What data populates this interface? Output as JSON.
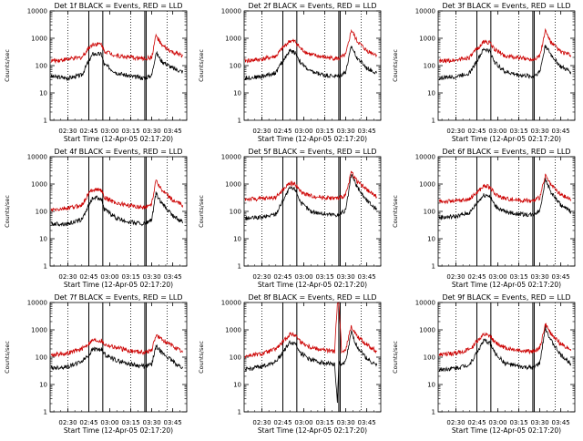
{
  "chart_data": [
    {
      "type": "line",
      "title": "Det 1f BLACK = Events, RED = LLD",
      "xlabel": "Start Time (12-Apr-05 02:17:20)",
      "ylabel": "Counts/sec",
      "ylim": [
        1,
        10000
      ],
      "yscale": "log",
      "xticks": [
        "02:30",
        "02:45",
        "03:00",
        "03:15",
        "03:30",
        "03:45"
      ],
      "yticks": [
        "1",
        "10",
        "100",
        "1000",
        "10000"
      ],
      "x_range": [
        "02:17:20",
        "03:55:00"
      ],
      "dotted_vlines": [
        "02:30",
        "03:15",
        "03:41"
      ],
      "solid_vlines": [
        "02:45",
        "02:55",
        "03:25",
        "03:26"
      ],
      "series": [
        {
          "color": "#000000",
          "x": [
            "02:18",
            "02:30",
            "02:40",
            "02:45",
            "02:48",
            "02:54",
            "02:56",
            "03:05",
            "03:15",
            "03:25",
            "03:30",
            "03:33",
            "03:37",
            "03:45",
            "03:52"
          ],
          "values": [
            40,
            35,
            45,
            150,
            270,
            260,
            110,
            55,
            40,
            35,
            45,
            300,
            150,
            80,
            60
          ]
        },
        {
          "color": "#cc0000",
          "x": [
            "02:18",
            "02:30",
            "02:40",
            "02:45",
            "02:48",
            "02:54",
            "02:56",
            "03:05",
            "03:15",
            "03:25",
            "03:30",
            "03:33",
            "03:37",
            "03:45",
            "03:52"
          ],
          "values": [
            150,
            170,
            200,
            450,
            620,
            600,
            350,
            230,
            200,
            180,
            200,
            1300,
            550,
            300,
            230
          ]
        }
      ]
    },
    {
      "type": "line",
      "title": "Det 2f BLACK = Events, RED = LLD",
      "xlabel": "Start Time (12-Apr-05 02:17:20)",
      "ylabel": "Counts/sec",
      "ylim": [
        1,
        10000
      ],
      "yscale": "log",
      "xticks": [
        "02:30",
        "02:45",
        "03:00",
        "03:15",
        "03:30",
        "03:45"
      ],
      "yticks": [
        "1",
        "10",
        "100",
        "1000",
        "10000"
      ],
      "x_range": [
        "02:17:20",
        "03:55:00"
      ],
      "dotted_vlines": [
        "02:30",
        "03:15",
        "03:41"
      ],
      "solid_vlines": [
        "02:45",
        "02:55",
        "03:25",
        "03:26"
      ],
      "series": [
        {
          "color": "#000000",
          "x": [
            "02:18",
            "02:30",
            "02:40",
            "02:45",
            "02:50",
            "02:54",
            "02:58",
            "03:05",
            "03:15",
            "03:25",
            "03:30",
            "03:34",
            "03:38",
            "03:45",
            "03:52"
          ],
          "values": [
            35,
            40,
            55,
            150,
            350,
            300,
            120,
            60,
            45,
            40,
            60,
            500,
            200,
            80,
            55
          ]
        },
        {
          "color": "#cc0000",
          "x": [
            "02:18",
            "02:30",
            "02:40",
            "02:45",
            "02:50",
            "02:54",
            "02:58",
            "03:05",
            "03:15",
            "03:25",
            "03:30",
            "03:34",
            "03:38",
            "03:45",
            "03:52"
          ],
          "values": [
            150,
            170,
            220,
            450,
            800,
            750,
            400,
            250,
            200,
            180,
            250,
            2000,
            800,
            350,
            250
          ]
        }
      ]
    },
    {
      "type": "line",
      "title": "Det 3f BLACK = Events, RED = LLD",
      "xlabel": "Start Time (12-Apr-05 02:17:20)",
      "ylabel": "Counts/sec",
      "ylim": [
        1,
        10000
      ],
      "yscale": "log",
      "xticks": [
        "02:30",
        "02:45",
        "03:00",
        "03:15",
        "03:30",
        "03:45"
      ],
      "yticks": [
        "1",
        "10",
        "100",
        "1000",
        "10000"
      ],
      "x_range": [
        "02:17:20",
        "03:55:00"
      ],
      "dotted_vlines": [
        "02:30",
        "03:15",
        "03:41"
      ],
      "solid_vlines": [
        "02:45",
        "02:55",
        "03:25",
        "03:26"
      ],
      "series": [
        {
          "color": "#000000",
          "x": [
            "02:18",
            "02:30",
            "02:40",
            "02:45",
            "02:50",
            "02:54",
            "02:58",
            "03:05",
            "03:15",
            "03:25",
            "03:30",
            "03:34",
            "03:38",
            "03:45",
            "03:52"
          ],
          "values": [
            35,
            40,
            55,
            150,
            400,
            350,
            130,
            60,
            45,
            40,
            60,
            550,
            250,
            90,
            60
          ]
        },
        {
          "color": "#cc0000",
          "x": [
            "02:18",
            "02:30",
            "02:40",
            "02:45",
            "02:50",
            "02:54",
            "02:58",
            "03:05",
            "03:15",
            "03:25",
            "03:30",
            "03:34",
            "03:38",
            "03:45",
            "03:52"
          ],
          "values": [
            140,
            160,
            200,
            400,
            750,
            700,
            380,
            230,
            190,
            170,
            230,
            1900,
            700,
            320,
            240
          ]
        }
      ]
    },
    {
      "type": "line",
      "title": "Det 4f BLACK = Events, RED = LLD",
      "xlabel": "Start Time (12-Apr-05 02:17:20)",
      "ylabel": "Counts/sec",
      "ylim": [
        1,
        10000
      ],
      "yscale": "log",
      "xticks": [
        "02:30",
        "02:45",
        "03:00",
        "03:15",
        "03:30",
        "03:45"
      ],
      "yticks": [
        "1",
        "10",
        "100",
        "1000",
        "10000"
      ],
      "x_range": [
        "02:17:20",
        "03:55:00"
      ],
      "dotted_vlines": [
        "02:30",
        "03:15",
        "03:41"
      ],
      "solid_vlines": [
        "02:45",
        "02:55",
        "03:25",
        "03:26"
      ],
      "series": [
        {
          "color": "#000000",
          "x": [
            "02:18",
            "02:30",
            "02:40",
            "02:45",
            "02:48",
            "02:54",
            "02:56",
            "03:05",
            "03:15",
            "03:25",
            "03:30",
            "03:33",
            "03:37",
            "03:45",
            "03:52"
          ],
          "values": [
            35,
            35,
            50,
            170,
            320,
            300,
            120,
            55,
            40,
            35,
            50,
            450,
            200,
            70,
            40
          ]
        },
        {
          "color": "#cc0000",
          "x": [
            "02:18",
            "02:30",
            "02:40",
            "02:45",
            "02:48",
            "02:54",
            "02:56",
            "03:05",
            "03:15",
            "03:25",
            "03:30",
            "03:33",
            "03:37",
            "03:45",
            "03:52"
          ],
          "values": [
            110,
            130,
            170,
            450,
            650,
            600,
            320,
            200,
            160,
            140,
            190,
            1500,
            600,
            250,
            170
          ]
        }
      ]
    },
    {
      "type": "line",
      "title": "Det 5f BLACK = Events, RED = LLD",
      "xlabel": "Start Time (12-Apr-05 02:17:20)",
      "ylabel": "Counts/sec",
      "ylim": [
        1,
        10000
      ],
      "yscale": "log",
      "xticks": [
        "02:30",
        "02:45",
        "03:00",
        "03:15",
        "03:30",
        "03:45"
      ],
      "yticks": [
        "1",
        "10",
        "100",
        "1000",
        "10000"
      ],
      "x_range": [
        "02:17:20",
        "03:55:00"
      ],
      "dotted_vlines": [
        "02:30",
        "03:15",
        "03:41"
      ],
      "solid_vlines": [
        "02:45",
        "02:55",
        "03:25",
        "03:26"
      ],
      "series": [
        {
          "color": "#000000",
          "x": [
            "02:18",
            "02:30",
            "02:40",
            "02:45",
            "02:50",
            "02:54",
            "02:58",
            "03:05",
            "03:15",
            "03:25",
            "03:30",
            "03:34",
            "03:38",
            "03:45",
            "03:52"
          ],
          "values": [
            55,
            60,
            80,
            250,
            700,
            650,
            200,
            100,
            80,
            75,
            110,
            2200,
            800,
            250,
            120
          ]
        },
        {
          "color": "#cc0000",
          "x": [
            "02:18",
            "02:30",
            "02:40",
            "02:45",
            "02:50",
            "02:54",
            "02:58",
            "03:05",
            "03:15",
            "03:25",
            "03:30",
            "03:34",
            "03:38",
            "03:45",
            "03:52"
          ],
          "values": [
            280,
            290,
            330,
            600,
            1100,
            1000,
            500,
            370,
            320,
            300,
            400,
            2800,
            1300,
            600,
            350
          ]
        }
      ]
    },
    {
      "type": "line",
      "title": "Det 6f BLACK = Events, RED = LLD",
      "xlabel": "Start Time (12-Apr-05 02:17:20)",
      "ylabel": "Counts/sec",
      "ylim": [
        1,
        10000
      ],
      "yscale": "log",
      "xticks": [
        "02:30",
        "02:45",
        "03:00",
        "03:15",
        "03:30",
        "03:45"
      ],
      "yticks": [
        "1",
        "10",
        "100",
        "1000",
        "10000"
      ],
      "x_range": [
        "02:17:20",
        "03:55:00"
      ],
      "dotted_vlines": [
        "02:30",
        "03:15",
        "03:41"
      ],
      "solid_vlines": [
        "02:45",
        "02:55",
        "03:25",
        "03:26"
      ],
      "series": [
        {
          "color": "#000000",
          "x": [
            "02:18",
            "02:30",
            "02:40",
            "02:45",
            "02:50",
            "02:54",
            "02:58",
            "03:05",
            "03:15",
            "03:25",
            "03:30",
            "03:34",
            "03:38",
            "03:45",
            "03:52"
          ],
          "values": [
            60,
            65,
            90,
            200,
            400,
            380,
            160,
            95,
            80,
            75,
            110,
            1500,
            500,
            170,
            100
          ]
        },
        {
          "color": "#cc0000",
          "x": [
            "02:18",
            "02:30",
            "02:40",
            "02:45",
            "02:50",
            "02:54",
            "02:58",
            "03:05",
            "03:15",
            "03:25",
            "03:30",
            "03:34",
            "03:38",
            "03:45",
            "03:52"
          ],
          "values": [
            230,
            240,
            280,
            500,
            850,
            800,
            420,
            300,
            260,
            240,
            320,
            2000,
            900,
            400,
            280
          ]
        }
      ]
    },
    {
      "type": "line",
      "title": "Det 7f BLACK = Events, RED = LLD",
      "xlabel": "Start Time (12-Apr-05 02:17:20)",
      "ylabel": "Counts/sec",
      "ylim": [
        1,
        10000
      ],
      "yscale": "log",
      "xticks": [
        "02:30",
        "02:45",
        "03:00",
        "03:15",
        "03:30",
        "03:45"
      ],
      "yticks": [
        "1",
        "10",
        "100",
        "1000",
        "10000"
      ],
      "x_range": [
        "02:17:20",
        "03:55:00"
      ],
      "dotted_vlines": [
        "02:30",
        "03:15",
        "03:41"
      ],
      "solid_vlines": [
        "02:45",
        "02:55",
        "03:25",
        "03:26"
      ],
      "series": [
        {
          "color": "#000000",
          "x": [
            "02:18",
            "02:30",
            "02:40",
            "02:45",
            "02:48",
            "02:54",
            "02:56",
            "03:05",
            "03:15",
            "03:25",
            "03:30",
            "03:33",
            "03:37",
            "03:45",
            "03:52"
          ],
          "values": [
            40,
            45,
            70,
            120,
            200,
            190,
            130,
            75,
            55,
            45,
            55,
            250,
            150,
            70,
            40
          ]
        },
        {
          "color": "#cc0000",
          "x": [
            "02:18",
            "02:30",
            "02:40",
            "02:45",
            "02:48",
            "02:54",
            "02:56",
            "03:05",
            "03:15",
            "03:25",
            "03:30",
            "03:33",
            "03:37",
            "03:45",
            "03:52"
          ],
          "values": [
            120,
            140,
            200,
            320,
            420,
            400,
            300,
            220,
            170,
            150,
            180,
            650,
            450,
            250,
            150
          ]
        }
      ]
    },
    {
      "type": "line",
      "title": "Det 8f BLACK = Events, RED = LLD",
      "xlabel": "Start Time (12-Apr-05 02:17:20)",
      "ylabel": "Counts/sec",
      "ylim": [
        1,
        10000
      ],
      "yscale": "log",
      "xticks": [
        "02:30",
        "02:45",
        "03:00",
        "03:15",
        "03:30",
        "03:45"
      ],
      "yticks": [
        "1",
        "10",
        "100",
        "1000",
        "10000"
      ],
      "x_range": [
        "02:17:20",
        "03:55:00"
      ],
      "dotted_vlines": [
        "02:30",
        "03:15",
        "03:41"
      ],
      "solid_vlines": [
        "02:45",
        "02:55",
        "03:25",
        "03:26"
      ],
      "series": [
        {
          "color": "#000000",
          "x": [
            "02:18",
            "02:30",
            "02:40",
            "02:45",
            "02:50",
            "02:54",
            "02:58",
            "03:05",
            "03:15",
            "03:22",
            "03:24",
            "03:25",
            "03:27",
            "03:30",
            "03:34",
            "03:38",
            "03:45",
            "03:52"
          ],
          "values": [
            35,
            45,
            70,
            150,
            350,
            320,
            140,
            80,
            60,
            55,
            2,
            60,
            55,
            70,
            800,
            250,
            90,
            50
          ]
        },
        {
          "color": "#cc0000",
          "x": [
            "02:18",
            "02:30",
            "02:40",
            "02:45",
            "02:50",
            "02:54",
            "02:58",
            "03:05",
            "03:15",
            "03:22",
            "03:24",
            "03:25",
            "03:27",
            "03:30",
            "03:34",
            "03:38",
            "03:45",
            "03:52"
          ],
          "values": [
            110,
            130,
            200,
            350,
            700,
            650,
            350,
            230,
            180,
            160,
            10000,
            10000,
            160,
            200,
            1400,
            600,
            280,
            170
          ]
        }
      ]
    },
    {
      "type": "line",
      "title": "Det 9f BLACK = Events, RED = LLD",
      "xlabel": "Start Time (12-Apr-05 02:17:20)",
      "ylabel": "Counts/sec",
      "ylim": [
        1,
        10000
      ],
      "yscale": "log",
      "xticks": [
        "02:30",
        "02:45",
        "03:00",
        "03:15",
        "03:30",
        "03:45"
      ],
      "yticks": [
        "1",
        "10",
        "100",
        "1000",
        "10000"
      ],
      "x_range": [
        "02:17:20",
        "03:55:00"
      ],
      "dotted_vlines": [
        "02:30",
        "03:15",
        "03:41"
      ],
      "solid_vlines": [
        "02:45",
        "02:55",
        "03:25",
        "03:26"
      ],
      "series": [
        {
          "color": "#000000",
          "x": [
            "02:18",
            "02:30",
            "02:40",
            "02:45",
            "02:50",
            "02:54",
            "02:58",
            "03:05",
            "03:15",
            "03:25",
            "03:30",
            "03:34",
            "03:38",
            "03:45",
            "03:52"
          ],
          "values": [
            35,
            40,
            55,
            150,
            400,
            350,
            140,
            60,
            45,
            40,
            60,
            1200,
            400,
            120,
            60
          ]
        },
        {
          "color": "#cc0000",
          "x": [
            "02:18",
            "02:30",
            "02:40",
            "02:45",
            "02:50",
            "02:54",
            "02:58",
            "03:05",
            "03:15",
            "03:25",
            "03:30",
            "03:34",
            "03:38",
            "03:45",
            "03:52"
          ],
          "values": [
            120,
            140,
            190,
            380,
            650,
            600,
            350,
            220,
            180,
            160,
            220,
            1600,
            700,
            300,
            200
          ]
        }
      ]
    }
  ]
}
